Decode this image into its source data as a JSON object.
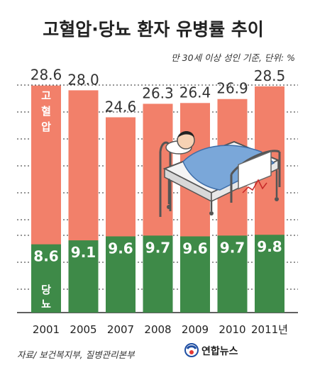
{
  "chart_data": {
    "type": "bar",
    "title": "고혈압·당뇨 환자 유병률 추이",
    "subtitle": "만 30세 이상 성인 기준, 단위: %",
    "categories": [
      "2001",
      "2005",
      "2007",
      "2008",
      "2009",
      "2010",
      "2011년"
    ],
    "series": [
      {
        "name": "고혈압",
        "values": [
          28.6,
          28.0,
          24.6,
          26.3,
          26.4,
          26.9,
          28.5
        ],
        "color": "#f2806a"
      },
      {
        "name": "당뇨",
        "values": [
          8.6,
          9.1,
          9.6,
          9.7,
          9.6,
          9.7,
          9.8
        ],
        "color": "#3e8a48"
      }
    ],
    "value_labels": {
      "hypertension": [
        "28.6",
        "28.0",
        "24.6",
        "26.3",
        "26.4",
        "26.9",
        "28.5"
      ],
      "diabetes": [
        "8.6",
        "9.1",
        "9.6",
        "9.7",
        "9.6",
        "9.7",
        "9.8"
      ]
    },
    "grid": true,
    "source": "자료/ 보건복지부, 질병관리본부",
    "publisher": "연합뉴스",
    "colors": {
      "grid": "#2b2b2b",
      "background": "#ffffff"
    },
    "icons": [
      "hospital-bed-illustration",
      "yonhap-logo-icon"
    ]
  }
}
